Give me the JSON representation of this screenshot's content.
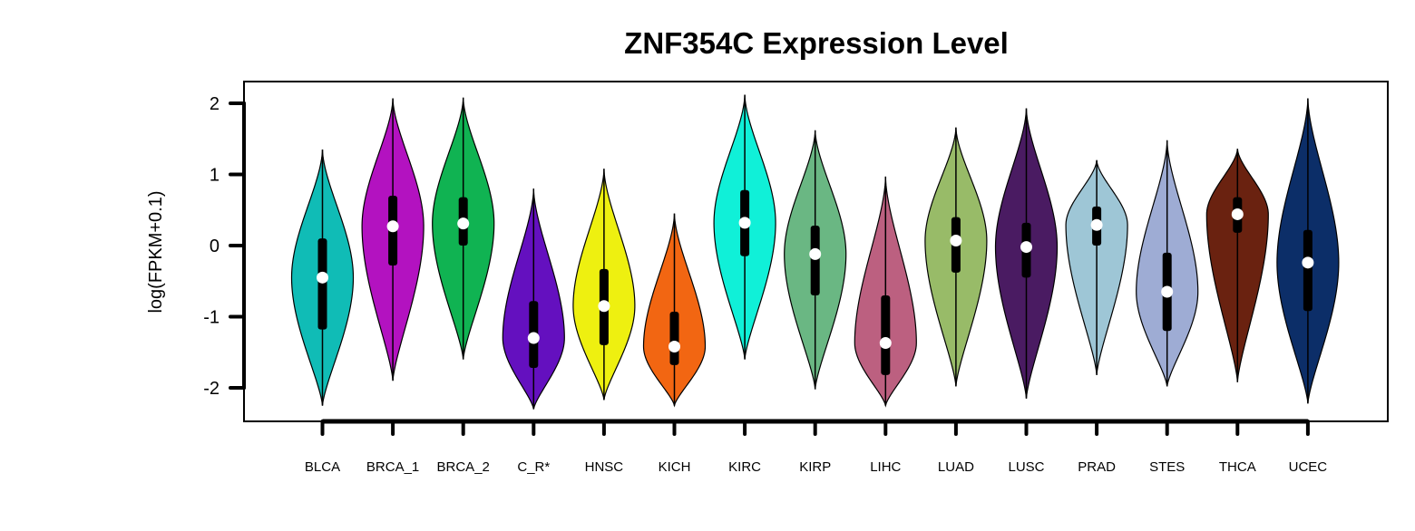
{
  "chart_data": {
    "type": "violin",
    "title": "ZNF354C Expression Level",
    "xlabel": "",
    "ylabel": "log(FPKM+0.1)",
    "ylim": [
      -2.5,
      2.2
    ],
    "yticks": [
      -2,
      -1,
      0,
      1,
      2
    ],
    "grid": false,
    "legend": "none",
    "categories": [
      "BLCA",
      "BRCA_1",
      "BRCA_2",
      "C_R*",
      "HNSC",
      "KICH",
      "KIRC",
      "KIRP",
      "LIHC",
      "LUAD",
      "LUSC",
      "PRAD",
      "STES",
      "THCA",
      "UCEC"
    ],
    "series": [
      {
        "category": "BLCA",
        "color": "#10bcb6",
        "min": -2.25,
        "max": 1.35,
        "q1": -1.18,
        "median": -0.45,
        "q3": 0.1
      },
      {
        "category": "BRCA_1",
        "color": "#b312c0",
        "min": -1.9,
        "max": 2.07,
        "q1": -0.28,
        "median": 0.27,
        "q3": 0.7
      },
      {
        "category": "BRCA_2",
        "color": "#10b352",
        "min": -1.6,
        "max": 2.08,
        "q1": 0.0,
        "median": 0.31,
        "q3": 0.68
      },
      {
        "category": "C_R*",
        "color": "#6410bf",
        "min": -2.3,
        "max": 0.8,
        "q1": -1.72,
        "median": -1.3,
        "q3": -0.78
      },
      {
        "category": "HNSC",
        "color": "#eef010",
        "min": -2.17,
        "max": 1.08,
        "q1": -1.4,
        "median": -0.85,
        "q3": -0.33
      },
      {
        "category": "KICH",
        "color": "#f26612",
        "min": -2.25,
        "max": 0.45,
        "q1": -1.68,
        "median": -1.42,
        "q3": -0.93
      },
      {
        "category": "KIRC",
        "color": "#10f0d8",
        "min": -1.6,
        "max": 2.12,
        "q1": -0.15,
        "median": 0.32,
        "q3": 0.78
      },
      {
        "category": "KIRP",
        "color": "#6ab783",
        "min": -2.02,
        "max": 1.62,
        "q1": -0.7,
        "median": -0.12,
        "q3": 0.28
      },
      {
        "category": "LIHC",
        "color": "#bc6080",
        "min": -2.25,
        "max": 0.97,
        "q1": -1.82,
        "median": -1.37,
        "q3": -0.7
      },
      {
        "category": "LUAD",
        "color": "#98bb68",
        "min": -1.98,
        "max": 1.66,
        "q1": -0.38,
        "median": 0.07,
        "q3": 0.4
      },
      {
        "category": "LUSC",
        "color": "#4a1b62",
        "min": -2.15,
        "max": 1.93,
        "q1": -0.45,
        "median": -0.02,
        "q3": 0.32
      },
      {
        "category": "PRAD",
        "color": "#9ec6d6",
        "min": -1.82,
        "max": 1.2,
        "q1": 0.0,
        "median": 0.29,
        "q3": 0.55
      },
      {
        "category": "STES",
        "color": "#9eacd4",
        "min": -1.98,
        "max": 1.48,
        "q1": -1.2,
        "median": -0.65,
        "q3": -0.1
      },
      {
        "category": "THCA",
        "color": "#6a2210",
        "min": -1.92,
        "max": 1.36,
        "q1": 0.18,
        "median": 0.44,
        "q3": 0.68
      },
      {
        "category": "UCEC",
        "color": "#0c2e68",
        "min": -2.22,
        "max": 2.07,
        "q1": -0.92,
        "median": -0.24,
        "q3": 0.22
      }
    ]
  }
}
